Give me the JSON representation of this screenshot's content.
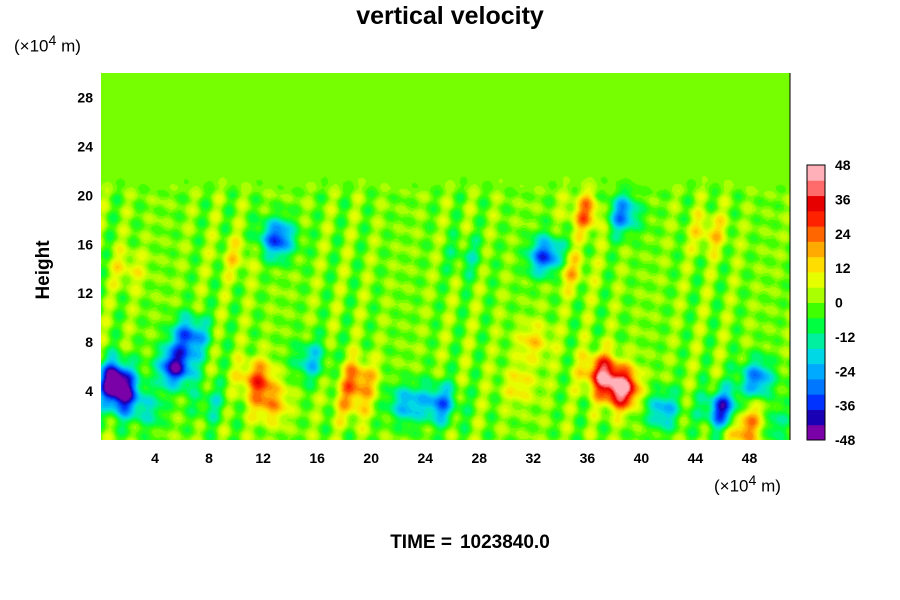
{
  "chart_data": {
    "type": "heatmap",
    "title": "vertical velocity",
    "ylabel": "Height",
    "x_unit_label": "(×10",
    "x_unit_exp": "4",
    "x_unit_tail": " m)",
    "y_unit_label": "(×10",
    "y_unit_exp": "4",
    "y_unit_tail": " m)",
    "xlim": [
      0,
      51
    ],
    "ylim": [
      0,
      30
    ],
    "x_ticks": [
      "4",
      "8",
      "12",
      "16",
      "20",
      "24",
      "28",
      "32",
      "36",
      "40",
      "44",
      "48"
    ],
    "x_tick_values": [
      4,
      8,
      12,
      16,
      20,
      24,
      28,
      32,
      36,
      40,
      44,
      48
    ],
    "y_ticks": [
      "4",
      "8",
      "12",
      "16",
      "20",
      "24",
      "28"
    ],
    "y_tick_values": [
      4,
      8,
      12,
      16,
      20,
      24,
      28
    ],
    "colorbar": {
      "labels": [
        "48",
        "36",
        "24",
        "12",
        "0",
        "-12",
        "-24",
        "-36",
        "-48"
      ],
      "label_values": [
        48,
        36,
        24,
        12,
        0,
        -12,
        -24,
        -36,
        -48
      ],
      "range": [
        -48,
        48
      ],
      "colors": [
        "#7a00a8",
        "#1a00b4",
        "#0033ff",
        "#0077ff",
        "#00aaff",
        "#00d8e6",
        "#00f0a0",
        "#00ff40",
        "#40ff00",
        "#aaff00",
        "#e6ff00",
        "#ffdd00",
        "#ffaa00",
        "#ff6600",
        "#ff2200",
        "#e60000",
        "#ff6a6a",
        "#ffb0b8"
      ]
    },
    "features": [
      {
        "x": 38.5,
        "y": 4.2,
        "value": 48
      },
      {
        "x": 37.0,
        "y": 5.5,
        "value": 36
      },
      {
        "x": 11.5,
        "y": 5.0,
        "value": 26
      },
      {
        "x": 12.5,
        "y": 3.0,
        "value": 20
      },
      {
        "x": 19.0,
        "y": 5.0,
        "value": 24
      },
      {
        "x": 18.5,
        "y": 3.0,
        "value": 14
      },
      {
        "x": 32.0,
        "y": 8.0,
        "value": 14
      },
      {
        "x": 31.0,
        "y": 4.5,
        "value": 12
      },
      {
        "x": 1.0,
        "y": 5.0,
        "value": -46
      },
      {
        "x": 1.5,
        "y": 3.5,
        "value": -34
      },
      {
        "x": 5.5,
        "y": 6.0,
        "value": -44
      },
      {
        "x": 6.5,
        "y": 8.5,
        "value": -34
      },
      {
        "x": 25.0,
        "y": 3.0,
        "value": -30
      },
      {
        "x": 22.5,
        "y": 3.0,
        "value": -24
      },
      {
        "x": 15.5,
        "y": 6.5,
        "value": -20
      },
      {
        "x": 33.0,
        "y": 15.0,
        "value": -40
      },
      {
        "x": 13.0,
        "y": 16.5,
        "value": -36
      },
      {
        "x": 46.0,
        "y": 2.5,
        "value": -40
      },
      {
        "x": 48.5,
        "y": 5.0,
        "value": -30
      },
      {
        "x": 41.5,
        "y": 2.5,
        "value": -24
      },
      {
        "x": 36.0,
        "y": 18.5,
        "value": 24
      },
      {
        "x": 38.5,
        "y": 18.5,
        "value": -30
      },
      {
        "x": 34.5,
        "y": 14.0,
        "value": 18
      },
      {
        "x": 2.0,
        "y": 14.0,
        "value": 10
      },
      {
        "x": 10.0,
        "y": 15.0,
        "value": 10
      },
      {
        "x": 48.5,
        "y": 2.0,
        "value": 20
      },
      {
        "x": 47.5,
        "y": 0.8,
        "value": 22
      },
      {
        "x": 49.5,
        "y": 1.5,
        "value": -20
      },
      {
        "x": 8.0,
        "y": 3.0,
        "value": -12
      },
      {
        "x": 3.5,
        "y": 2.5,
        "value": -14
      },
      {
        "x": 27.0,
        "y": 15.0,
        "value": -10
      },
      {
        "x": 45.0,
        "y": 17.0,
        "value": 14
      }
    ],
    "grid": false,
    "legend": "colorbar-right"
  },
  "footer": {
    "time_label": "TIME =",
    "time_value": "1023840.0"
  }
}
